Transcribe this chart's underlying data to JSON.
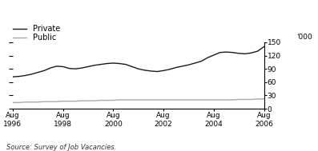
{
  "title": "",
  "ylabel_right": "'000",
  "source_text": "Source: Survey of Job Vacancies.",
  "x_tick_labels": [
    "Aug\n1996",
    "Aug\n1998",
    "Aug\n2000",
    "Aug\n2002",
    "Aug\n2004",
    "Aug\n2006"
  ],
  "x_tick_positions": [
    0,
    2,
    4,
    6,
    8,
    10
  ],
  "ylim": [
    0,
    150
  ],
  "yticks": [
    0,
    30,
    60,
    90,
    120,
    150
  ],
  "legend_entries": [
    "Private",
    "Public"
  ],
  "private_color": "#1a1a1a",
  "public_color": "#aaaaaa",
  "private_x": [
    0,
    0.25,
    0.5,
    0.75,
    1.0,
    1.25,
    1.5,
    1.75,
    2.0,
    2.25,
    2.5,
    2.75,
    3.0,
    3.25,
    3.5,
    3.75,
    4.0,
    4.25,
    4.5,
    4.75,
    5.0,
    5.25,
    5.5,
    5.75,
    6.0,
    6.25,
    6.5,
    6.75,
    7.0,
    7.25,
    7.5,
    7.75,
    8.0,
    8.25,
    8.5,
    8.75,
    9.0,
    9.25,
    9.5,
    9.75,
    10.0
  ],
  "private_y": [
    72,
    73,
    75,
    78,
    82,
    86,
    92,
    96,
    95,
    91,
    90,
    92,
    95,
    98,
    100,
    102,
    103,
    102,
    100,
    95,
    90,
    87,
    85,
    84,
    86,
    89,
    93,
    96,
    99,
    103,
    107,
    115,
    121,
    127,
    128,
    127,
    125,
    124,
    126,
    130,
    140
  ],
  "public_x": [
    0,
    0.25,
    0.5,
    0.75,
    1.0,
    1.25,
    1.5,
    1.75,
    2.0,
    2.25,
    2.5,
    2.75,
    3.0,
    3.25,
    3.5,
    3.75,
    4.0,
    4.25,
    4.5,
    4.75,
    5.0,
    5.25,
    5.5,
    5.75,
    6.0,
    6.25,
    6.5,
    6.75,
    7.0,
    7.25,
    7.5,
    7.75,
    8.0,
    8.25,
    8.5,
    8.75,
    9.0,
    9.25,
    9.5,
    9.75,
    10.0
  ],
  "public_y": [
    14,
    14,
    15,
    15,
    15,
    16,
    16,
    16,
    17,
    17,
    17,
    18,
    18,
    18,
    19,
    19,
    19,
    20,
    20,
    20,
    20,
    20,
    20,
    20,
    20,
    20,
    20,
    20,
    20,
    20,
    20,
    20,
    20,
    20,
    20,
    20,
    21,
    21,
    21,
    22,
    22
  ],
  "background_color": "#ffffff",
  "linewidth_private": 1.0,
  "linewidth_public": 1.0,
  "font_size_tick": 6.5,
  "font_size_legend": 7.0,
  "font_size_source": 6.0
}
